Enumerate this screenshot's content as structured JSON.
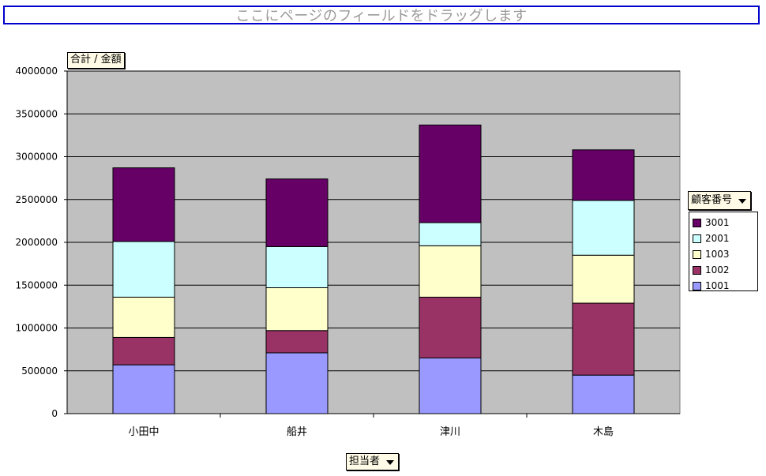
{
  "page_field_drop": {
    "text": "ここにページのフィールドをドラッグします"
  },
  "data_field": {
    "label": "合計 / 金額"
  },
  "series_field": {
    "label": "顧客番号"
  },
  "category_field": {
    "label": "担当者"
  },
  "colors": {
    "1001": "#9999ff",
    "1002": "#993366",
    "1003": "#ffffcc",
    "2001": "#ccffff",
    "3001": "#660066",
    "plot_bg": "#c0c0c0"
  },
  "chart_data": {
    "type": "bar",
    "stacked": true,
    "categories": [
      "小田中",
      "船井",
      "津川",
      "木島"
    ],
    "series": [
      {
        "name": "1001",
        "color": "#9999ff",
        "values": [
          570000,
          710000,
          650000,
          450000
        ]
      },
      {
        "name": "1002",
        "color": "#993366",
        "values": [
          320000,
          260000,
          710000,
          840000
        ]
      },
      {
        "name": "1003",
        "color": "#ffffcc",
        "values": [
          470000,
          500000,
          600000,
          560000
        ]
      },
      {
        "name": "2001",
        "color": "#ccffff",
        "values": [
          650000,
          480000,
          270000,
          640000
        ]
      },
      {
        "name": "3001",
        "color": "#660066",
        "values": [
          860000,
          790000,
          1140000,
          590000
        ]
      }
    ],
    "yticks": [
      "0",
      "500000",
      "1000000",
      "1500000",
      "2000000",
      "2500000",
      "3000000",
      "3500000",
      "4000000"
    ],
    "ylim": [
      0,
      4000000
    ],
    "grid": true,
    "legend_position": "right"
  }
}
